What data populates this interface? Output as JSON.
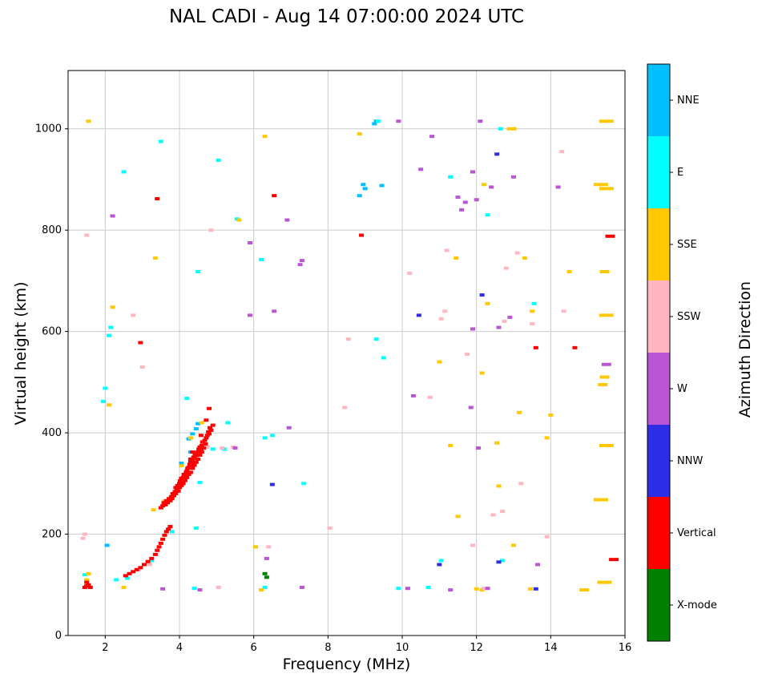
{
  "title": "NAL CADI - Aug 14 07:00:00 2024 UTC",
  "axes": {
    "x": {
      "label": "Frequency (MHz)",
      "ticks": [
        2,
        4,
        6,
        8,
        10,
        12,
        14,
        16
      ],
      "lim": [
        1,
        16
      ]
    },
    "y": {
      "label": "Virtual height (km)",
      "ticks": [
        0,
        200,
        400,
        600,
        800,
        1000
      ],
      "lim": [
        0,
        1115
      ]
    }
  },
  "colorbar": {
    "label": "Azimuth Direction",
    "entries": [
      {
        "label": "NNE",
        "color": "#00BFFF"
      },
      {
        "label": "E",
        "color": "#00FFFF"
      },
      {
        "label": "SSE",
        "color": "#FFC800"
      },
      {
        "label": "SSW",
        "color": "#FFB6C1"
      },
      {
        "label": "W",
        "color": "#BA55D3"
      },
      {
        "label": "NNW",
        "color": "#2E2EE6"
      },
      {
        "label": "Vertical",
        "color": "#FF0000"
      },
      {
        "label": "X-mode",
        "color": "#008000"
      }
    ]
  },
  "chart_data": {
    "type": "scatter",
    "title": "NAL CADI - Aug 14 07:00:00 2024 UTC",
    "xlabel": "Frequency (MHz)",
    "ylabel": "Virtual height (km)",
    "xlim": [
      1,
      16
    ],
    "ylim": [
      0,
      1115
    ],
    "grid": true,
    "legend_title": "Azimuth Direction",
    "legend_position": "right-colorbar",
    "marker": "short-horizontal-dash",
    "series": [
      {
        "name": "NNE",
        "color": "#00BFFF",
        "points": [
          [
            9.25,
            1010
          ],
          [
            9.3,
            1015
          ],
          [
            8.95,
            890
          ],
          [
            9.0,
            882
          ],
          [
            8.85,
            868
          ],
          [
            9.45,
            888
          ],
          [
            2.05,
            178
          ],
          [
            4.35,
            398
          ],
          [
            4.45,
            408
          ],
          [
            4.25,
            388
          ],
          [
            4.5,
            418
          ],
          [
            4.05,
            340
          ],
          [
            4.3,
            362
          ]
        ]
      },
      {
        "name": "E",
        "color": "#00FFFF",
        "points": [
          [
            3.5,
            975
          ],
          [
            2.5,
            915
          ],
          [
            5.05,
            938
          ],
          [
            9.35,
            1015
          ],
          [
            12.65,
            1000
          ],
          [
            11.3,
            905
          ],
          [
            12.3,
            830
          ],
          [
            13.55,
            655
          ],
          [
            2.15,
            608
          ],
          [
            2.1,
            592
          ],
          [
            2.0,
            488
          ],
          [
            1.95,
            462
          ],
          [
            4.5,
            718
          ],
          [
            5.55,
            822
          ],
          [
            6.2,
            742
          ],
          [
            6.3,
            390
          ],
          [
            6.5,
            395
          ],
          [
            9.5,
            548
          ],
          [
            9.3,
            585
          ],
          [
            5.3,
            420
          ],
          [
            4.2,
            468
          ],
          [
            10.7,
            95
          ],
          [
            9.9,
            93
          ],
          [
            6.3,
            95
          ],
          [
            2.3,
            110
          ],
          [
            2.6,
            113
          ],
          [
            3.25,
            148
          ],
          [
            3.8,
            205
          ],
          [
            5.2,
            368
          ],
          [
            4.9,
            368
          ],
          [
            1.45,
            120
          ],
          [
            12.7,
            148
          ],
          [
            11.05,
            148
          ],
          [
            4.55,
            302
          ],
          [
            7.35,
            300
          ],
          [
            4.45,
            212
          ],
          [
            4.4,
            93
          ]
        ]
      },
      {
        "name": "SSE",
        "color": "#FFC800",
        "points": [
          [
            15.5,
            1015,
            3
          ],
          [
            15.35,
            890,
            3
          ],
          [
            15.5,
            882,
            3
          ],
          [
            15.45,
            718,
            2
          ],
          [
            15.5,
            632,
            3
          ],
          [
            15.45,
            510,
            2
          ],
          [
            15.4,
            495,
            2
          ],
          [
            15.5,
            375,
            3
          ],
          [
            15.35,
            268,
            3
          ],
          [
            15.45,
            105,
            3
          ],
          [
            14.9,
            90,
            2
          ],
          [
            12.95,
            1000,
            2
          ],
          [
            1.55,
            1015
          ],
          [
            6.3,
            985
          ],
          [
            8.85,
            990
          ],
          [
            12.2,
            890
          ],
          [
            11.45,
            745
          ],
          [
            13.3,
            745
          ],
          [
            14.5,
            718
          ],
          [
            12.3,
            655
          ],
          [
            13.5,
            640
          ],
          [
            11.0,
            540
          ],
          [
            12.15,
            518
          ],
          [
            13.15,
            440
          ],
          [
            14.0,
            435
          ],
          [
            13.9,
            390
          ],
          [
            12.55,
            380
          ],
          [
            11.3,
            375
          ],
          [
            11.5,
            235
          ],
          [
            12.0,
            92
          ],
          [
            12.15,
            90
          ],
          [
            13.0,
            178
          ],
          [
            6.05,
            175
          ],
          [
            6.2,
            90
          ],
          [
            5.6,
            820
          ],
          [
            2.2,
            648
          ],
          [
            2.1,
            455
          ],
          [
            1.5,
            110
          ],
          [
            1.55,
            122
          ],
          [
            2.5,
            95
          ],
          [
            4.05,
            335
          ],
          [
            4.3,
            390
          ],
          [
            4.6,
            420
          ],
          [
            3.6,
            265
          ],
          [
            3.3,
            248
          ],
          [
            3.35,
            745
          ],
          [
            12.6,
            295
          ],
          [
            13.45,
            92
          ]
        ]
      },
      {
        "name": "SSW",
        "color": "#FFB6C1",
        "points": [
          [
            1.5,
            790
          ],
          [
            1.45,
            200
          ],
          [
            1.4,
            192
          ],
          [
            2.75,
            632
          ],
          [
            3.0,
            530
          ],
          [
            4.85,
            800
          ],
          [
            5.15,
            370
          ],
          [
            4.75,
            372
          ],
          [
            5.45,
            372
          ],
          [
            3.2,
            140
          ],
          [
            2.9,
            130
          ],
          [
            8.55,
            585
          ],
          [
            8.45,
            450
          ],
          [
            8.05,
            212
          ],
          [
            10.75,
            470
          ],
          [
            10.2,
            715
          ],
          [
            11.2,
            760
          ],
          [
            11.15,
            640
          ],
          [
            11.05,
            625
          ],
          [
            11.75,
            555
          ],
          [
            12.8,
            725
          ],
          [
            13.1,
            755
          ],
          [
            12.75,
            620
          ],
          [
            13.5,
            615
          ],
          [
            13.2,
            300
          ],
          [
            12.7,
            245
          ],
          [
            13.9,
            195
          ],
          [
            14.3,
            955
          ],
          [
            14.35,
            640
          ],
          [
            12.2,
            93
          ],
          [
            11.9,
            178
          ],
          [
            12.45,
            238
          ],
          [
            1.45,
            95
          ],
          [
            6.4,
            175
          ],
          [
            5.05,
            95
          ]
        ]
      },
      {
        "name": "W",
        "color": "#BA55D3",
        "points": [
          [
            2.2,
            828
          ],
          [
            5.9,
            775
          ],
          [
            6.9,
            820
          ],
          [
            7.3,
            740
          ],
          [
            7.25,
            732
          ],
          [
            9.9,
            1015
          ],
          [
            10.5,
            920
          ],
          [
            10.8,
            985
          ],
          [
            11.5,
            865
          ],
          [
            11.7,
            855
          ],
          [
            11.9,
            915
          ],
          [
            12.1,
            1015
          ],
          [
            12.4,
            885
          ],
          [
            13.0,
            905
          ],
          [
            14.2,
            885
          ],
          [
            12.0,
            860
          ],
          [
            11.6,
            840
          ],
          [
            11.9,
            605
          ],
          [
            12.6,
            608
          ],
          [
            10.3,
            473
          ],
          [
            11.85,
            450
          ],
          [
            5.5,
            370
          ],
          [
            7.3,
            95
          ],
          [
            12.3,
            93
          ],
          [
            11.3,
            90
          ],
          [
            13.65,
            140
          ],
          [
            10.15,
            93
          ],
          [
            6.55,
            640
          ],
          [
            5.9,
            632
          ],
          [
            12.9,
            628
          ],
          [
            6.95,
            410
          ],
          [
            3.55,
            92
          ],
          [
            12.05,
            370
          ],
          [
            6.35,
            152
          ],
          [
            15.5,
            535,
            2
          ],
          [
            4.55,
            90
          ]
        ]
      },
      {
        "name": "NNW",
        "color": "#2E2EE6",
        "points": [
          [
            12.55,
            950
          ],
          [
            11.0,
            140
          ],
          [
            12.6,
            145
          ],
          [
            10.45,
            632
          ],
          [
            12.15,
            672
          ],
          [
            4.4,
            352
          ],
          [
            4.3,
            342
          ],
          [
            6.5,
            298
          ],
          [
            13.6,
            92
          ]
        ]
      },
      {
        "name": "Vertical",
        "color": "#FF0000",
        "points": [
          [
            3.5,
            252
          ],
          [
            3.55,
            256
          ],
          [
            3.58,
            262
          ],
          [
            3.62,
            258
          ],
          [
            3.65,
            266
          ],
          [
            3.68,
            262
          ],
          [
            3.72,
            270
          ],
          [
            3.75,
            266
          ],
          [
            3.78,
            274
          ],
          [
            3.8,
            270
          ],
          [
            3.82,
            280
          ],
          [
            3.85,
            276
          ],
          [
            3.88,
            284
          ],
          [
            3.9,
            280
          ],
          [
            3.9,
            292
          ],
          [
            3.93,
            288
          ],
          [
            3.95,
            296
          ],
          [
            3.97,
            285
          ],
          [
            4.0,
            292
          ],
          [
            4.0,
            300
          ],
          [
            4.02,
            305
          ],
          [
            4.05,
            296
          ],
          [
            4.05,
            310
          ],
          [
            4.08,
            302
          ],
          [
            4.1,
            300
          ],
          [
            4.1,
            312
          ],
          [
            4.12,
            318
          ],
          [
            4.15,
            306
          ],
          [
            4.15,
            316
          ],
          [
            4.18,
            322
          ],
          [
            4.2,
            312
          ],
          [
            4.2,
            325
          ],
          [
            4.22,
            330
          ],
          [
            4.25,
            318
          ],
          [
            4.25,
            332
          ],
          [
            4.28,
            338
          ],
          [
            4.3,
            322
          ],
          [
            4.3,
            335
          ],
          [
            4.3,
            348
          ],
          [
            4.33,
            342
          ],
          [
            4.35,
            330
          ],
          [
            4.35,
            345
          ],
          [
            4.38,
            352
          ],
          [
            4.4,
            336
          ],
          [
            4.4,
            350
          ],
          [
            4.42,
            358
          ],
          [
            4.45,
            342
          ],
          [
            4.45,
            355
          ],
          [
            4.48,
            362
          ],
          [
            4.5,
            348
          ],
          [
            4.5,
            360
          ],
          [
            4.52,
            368
          ],
          [
            4.55,
            356
          ],
          [
            4.55,
            372
          ],
          [
            4.58,
            365
          ],
          [
            4.6,
            362
          ],
          [
            4.6,
            375
          ],
          [
            4.62,
            382
          ],
          [
            4.65,
            370
          ],
          [
            4.68,
            385
          ],
          [
            4.7,
            378
          ],
          [
            4.72,
            390
          ],
          [
            4.75,
            395
          ],
          [
            4.78,
            402
          ],
          [
            4.8,
            398
          ],
          [
            4.82,
            410
          ],
          [
            4.85,
            405
          ],
          [
            4.9,
            415
          ],
          [
            4.8,
            448
          ],
          [
            4.72,
            425
          ],
          [
            4.58,
            395
          ],
          [
            4.35,
            362
          ],
          [
            1.45,
            95
          ],
          [
            1.5,
            98
          ],
          [
            1.5,
            105
          ],
          [
            1.55,
            100
          ],
          [
            1.6,
            95
          ],
          [
            2.55,
            118
          ],
          [
            2.65,
            122
          ],
          [
            2.75,
            126
          ],
          [
            2.85,
            130
          ],
          [
            2.95,
            134
          ],
          [
            3.05,
            140
          ],
          [
            3.15,
            146
          ],
          [
            3.25,
            152
          ],
          [
            3.35,
            160
          ],
          [
            3.4,
            168
          ],
          [
            3.45,
            175
          ],
          [
            3.5,
            182
          ],
          [
            3.55,
            190
          ],
          [
            3.6,
            198
          ],
          [
            3.65,
            205
          ],
          [
            3.7,
            210
          ],
          [
            3.75,
            215
          ],
          [
            3.4,
            862
          ],
          [
            8.9,
            790
          ],
          [
            15.6,
            788,
            2
          ],
          [
            15.7,
            150,
            2
          ],
          [
            13.6,
            568
          ],
          [
            14.65,
            568
          ],
          [
            2.95,
            578
          ],
          [
            6.55,
            868
          ]
        ]
      },
      {
        "name": "X-mode",
        "color": "#008000",
        "points": [
          [
            6.35,
            115
          ],
          [
            6.3,
            122
          ]
        ]
      }
    ]
  }
}
